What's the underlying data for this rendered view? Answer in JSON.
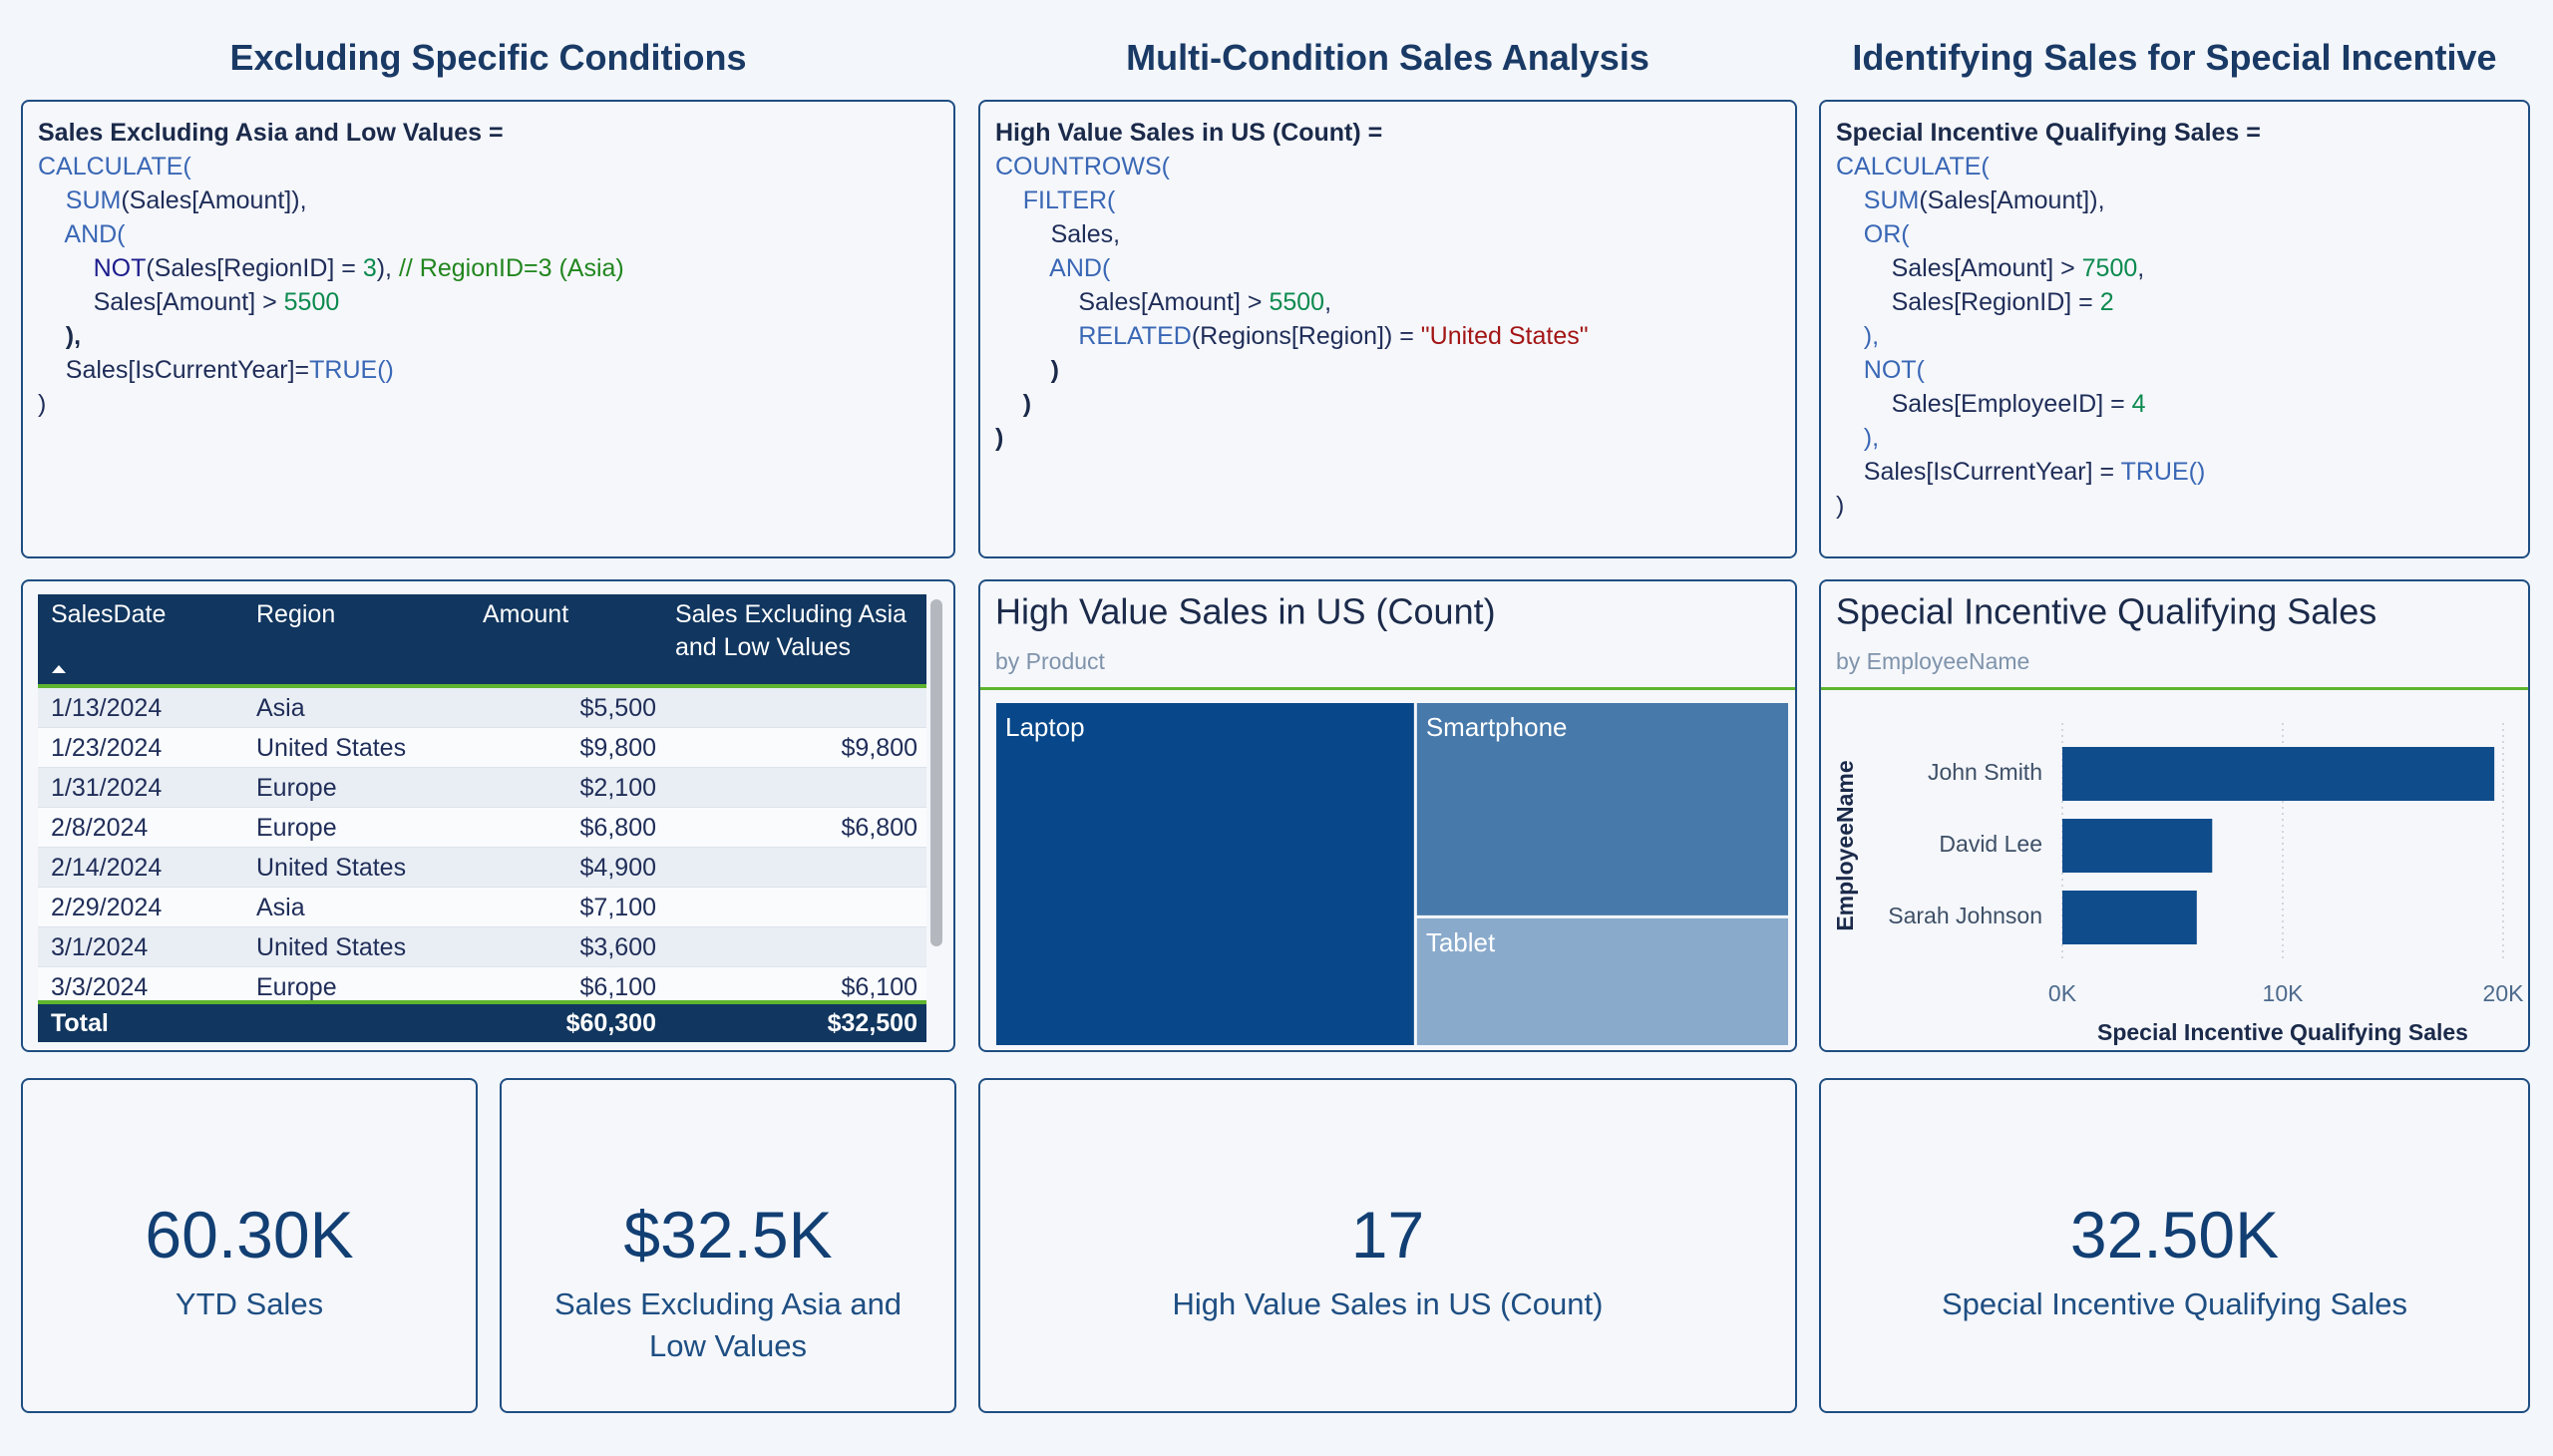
{
  "section_titles": [
    "Excluding Specific Conditions",
    "Multi-Condition Sales Analysis",
    "Identifying Sales for Special Incentive"
  ],
  "code_boxes": [
    {
      "lines": [
        [
          {
            "text": "Sales Excluding Asia and Low Values =",
            "color": "#1b2a4a",
            "bold": true
          }
        ],
        [
          {
            "text": "CALCULATE(",
            "color": "#3a67b5"
          }
        ],
        [
          {
            "text": "    SUM",
            "color": "#3a67b5"
          },
          {
            "text": "(Sales[Amount]),",
            "color": "#1f2d58"
          }
        ],
        [
          {
            "text": "    AND(",
            "color": "#3a67b5"
          }
        ],
        [
          {
            "text": "        NOT",
            "color": "#1c1c8c"
          },
          {
            "text": "(Sales[RegionID] = ",
            "color": "#1f2d58"
          },
          {
            "text": "3",
            "color": "#0c8a4e"
          },
          {
            "text": "), ",
            "color": "#1f2d58"
          },
          {
            "text": "// RegionID=3 (Asia)",
            "color": "#22861f"
          }
        ],
        [
          {
            "text": "        Sales[Amount] > ",
            "color": "#1f2d58"
          },
          {
            "text": "5500",
            "color": "#0c8a4e"
          }
        ],
        [
          {
            "text": "    ),",
            "color": "#1b2a4a",
            "bold": true
          }
        ],
        [
          {
            "text": "    Sales[IsCurrentYear]=",
            "color": "#1f2d58"
          },
          {
            "text": "TRUE()",
            "color": "#3a67b5"
          }
        ],
        [
          {
            "text": ")",
            "color": "#1f2d58"
          }
        ]
      ]
    },
    {
      "lines": [
        [
          {
            "text": "High Value Sales in US (Count) =",
            "color": "#1b2a4a",
            "bold": true
          }
        ],
        [
          {
            "text": "COUNTROWS(",
            "color": "#3a67b5"
          }
        ],
        [
          {
            "text": "    FILTER(",
            "color": "#3a67b5"
          }
        ],
        [
          {
            "text": "        Sales,",
            "color": "#1f2d58"
          }
        ],
        [
          {
            "text": "        AND(",
            "color": "#3a67b5"
          }
        ],
        [
          {
            "text": "            Sales[Amount] > ",
            "color": "#1f2d58"
          },
          {
            "text": "5500",
            "color": "#0c8a4e"
          },
          {
            "text": ",",
            "color": "#1f2d58"
          }
        ],
        [
          {
            "text": "            RELATED",
            "color": "#3a67b5"
          },
          {
            "text": "(Regions[Region]) = ",
            "color": "#1f2d58"
          },
          {
            "text": "\"United States\"",
            "color": "#a31515"
          }
        ],
        [
          {
            "text": "        )",
            "color": "#1b2a4a",
            "bold": true
          }
        ],
        [
          {
            "text": "    )",
            "color": "#1b2a4a",
            "bold": true
          }
        ],
        [
          {
            "text": ")",
            "color": "#1b2a4a",
            "bold": true
          }
        ]
      ]
    },
    {
      "lines": [
        [
          {
            "text": "Special Incentive Qualifying Sales =",
            "color": "#1b2a4a",
            "bold": true
          }
        ],
        [
          {
            "text": "CALCULATE(",
            "color": "#3a67b5"
          }
        ],
        [
          {
            "text": "    SUM",
            "color": "#3a67b5"
          },
          {
            "text": "(Sales[Amount]),",
            "color": "#1f2d58"
          }
        ],
        [
          {
            "text": "    OR(",
            "color": "#3a67b5"
          }
        ],
        [
          {
            "text": "        Sales[Amount] > ",
            "color": "#1f2d58"
          },
          {
            "text": "7500",
            "color": "#0c8a4e"
          },
          {
            "text": ",",
            "color": "#1f2d58"
          }
        ],
        [
          {
            "text": "        Sales[RegionID] = ",
            "color": "#1f2d58"
          },
          {
            "text": "2",
            "color": "#0c8a4e"
          }
        ],
        [
          {
            "text": "    ),",
            "color": "#3a67b5"
          }
        ],
        [
          {
            "text": "    NOT(",
            "color": "#3a67b5"
          }
        ],
        [
          {
            "text": "        Sales[EmployeeID] = ",
            "color": "#1f2d58"
          },
          {
            "text": "4",
            "color": "#0c8a4e"
          }
        ],
        [
          {
            "text": "    ),",
            "color": "#3a67b5"
          }
        ],
        [
          {
            "text": "    Sales[IsCurrentYear] = ",
            "color": "#1f2d58"
          },
          {
            "text": "TRUE()",
            "color": "#3a67b5"
          }
        ],
        [
          {
            "text": ")",
            "color": "#1f2d58"
          }
        ]
      ]
    }
  ],
  "table": {
    "columns": [
      "SalesDate",
      "Region",
      "Amount",
      "Sales Excluding Asia and Low Values"
    ],
    "rows": [
      [
        "1/13/2024",
        "Asia",
        "$5,500",
        null
      ],
      [
        "1/23/2024",
        "United States",
        "$9,800",
        "$9,800"
      ],
      [
        "1/31/2024",
        "Europe",
        "$2,100",
        null
      ],
      [
        "2/8/2024",
        "Europe",
        "$6,800",
        "$6,800"
      ],
      [
        "2/14/2024",
        "United States",
        "$4,900",
        null
      ],
      [
        "2/29/2024",
        "Asia",
        "$7,100",
        null
      ],
      [
        "3/1/2024",
        "United States",
        "$3,600",
        null
      ],
      [
        "3/3/2024",
        "Europe",
        "$6,100",
        "$6,100"
      ]
    ],
    "total": [
      "Total",
      null,
      "$60,300",
      "$32,500"
    ]
  },
  "chart_data": [
    {
      "type": "treemap",
      "title": "High Value Sales in US (Count)",
      "subtitle": "by Product",
      "categories": [
        "Laptop",
        "Smartphone",
        "Tablet"
      ],
      "values": [
        9,
        5,
        3
      ],
      "colors": [
        "#08488a",
        "#4779aa",
        "#8aaacc"
      ]
    },
    {
      "type": "bar",
      "orientation": "horizontal",
      "title": "Special Incentive Qualifying Sales",
      "subtitle": "by EmployeeName",
      "categories": [
        "John Smith",
        "David Lee",
        "Sarah Johnson"
      ],
      "values": [
        19600,
        6800,
        6100
      ],
      "color": "#0f4c8c",
      "xlim": [
        0,
        20000
      ],
      "xticks": [
        {
          "value": 0,
          "label": "0K"
        },
        {
          "value": 10000,
          "label": "10K"
        },
        {
          "value": 20000,
          "label": "20K"
        }
      ],
      "xlabel": "Special Incentive Qualifying Sales",
      "ylabel": "EmployeeName",
      "grid": true
    }
  ],
  "cards": [
    {
      "value": "60.30K",
      "label": "YTD Sales"
    },
    {
      "value": "$32.5K",
      "label": "Sales Excluding Asia and Low Values"
    },
    {
      "value": "17",
      "label": "High Value Sales in US (Count)"
    },
    {
      "value": "32.50K",
      "label": "Special Incentive Qualifying Sales"
    }
  ]
}
